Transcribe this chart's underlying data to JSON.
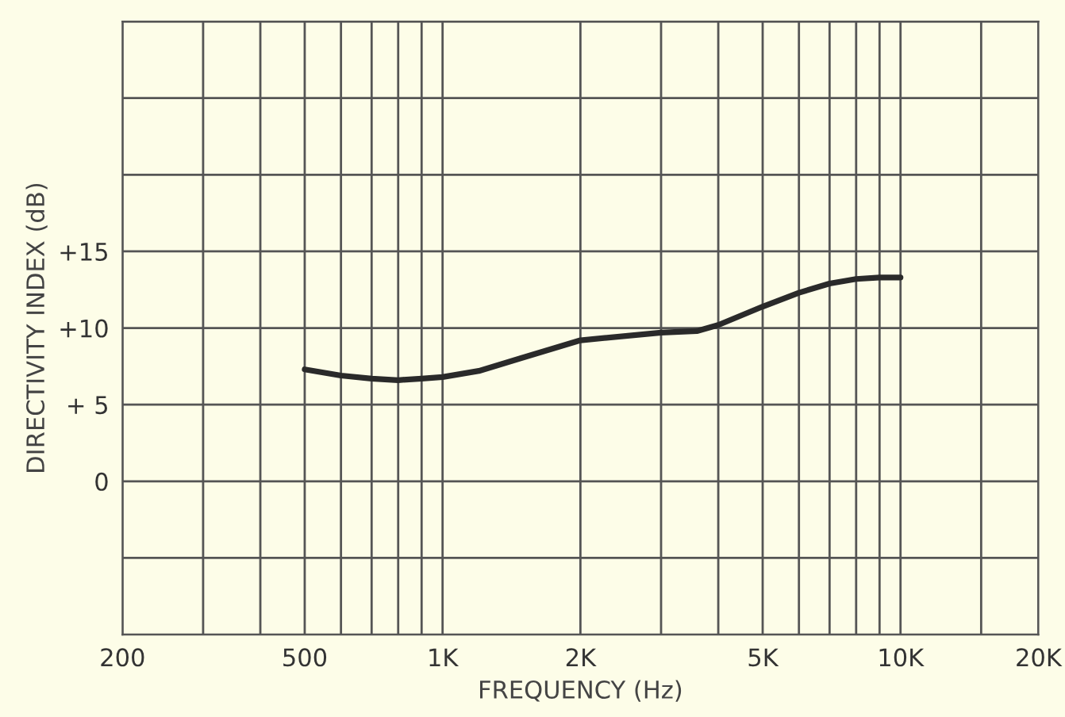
{
  "chart_data": {
    "type": "line",
    "xlabel": "FREQUENCY (Hz)",
    "ylabel": "DIRECTIVITY INDEX (dB)",
    "log": "x",
    "grid": true,
    "marker": "none",
    "line_style": "solid",
    "x": [
      500,
      600,
      700,
      800,
      900,
      1000,
      1200,
      1470,
      2000,
      3000,
      3590,
      4000,
      5000,
      6000,
      7000,
      8000,
      9000,
      10000
    ],
    "series": [
      {
        "color": "#2a2a2a",
        "values": [
          7.3,
          6.9,
          6.7,
          6.6,
          6.7,
          6.8,
          7.2,
          8.0,
          9.2,
          9.7,
          9.8,
          10.2,
          11.4,
          12.3,
          12.9,
          13.2,
          13.3,
          13.3
        ]
      }
    ],
    "xlim": [
      200,
      20000
    ],
    "xticks": [
      {
        "value": 200,
        "label": "200"
      },
      {
        "value": 300,
        "label": null
      },
      {
        "value": 400,
        "label": null
      },
      {
        "value": 500,
        "label": "500"
      },
      {
        "value": 600,
        "label": null
      },
      {
        "value": 700,
        "label": null
      },
      {
        "value": 800,
        "label": null
      },
      {
        "value": 900,
        "label": null
      },
      {
        "value": 1000,
        "label": "1K"
      },
      {
        "value": 2000,
        "label": "2K"
      },
      {
        "value": 3000,
        "label": null
      },
      {
        "value": 4000,
        "label": null
      },
      {
        "value": 5000,
        "label": "5K"
      },
      {
        "value": 6000,
        "label": null
      },
      {
        "value": 7000,
        "label": null
      },
      {
        "value": 8000,
        "label": null
      },
      {
        "value": 9000,
        "label": null
      },
      {
        "value": 10000,
        "label": "10K"
      },
      {
        "value": 15000,
        "label": null
      },
      {
        "value": 20000,
        "label": "20K"
      }
    ],
    "ylim": [
      -10,
      30
    ],
    "yticks": [
      {
        "value": -10,
        "label": null
      },
      {
        "value": -5,
        "label": null
      },
      0,
      {
        "value": 5,
        "label": "+ 5"
      },
      {
        "value": 10,
        "label": "+10"
      },
      {
        "value": 15,
        "label": "+15"
      },
      {
        "value": 20,
        "label": null
      },
      {
        "value": 25,
        "label": null
      },
      {
        "value": 30,
        "label": null
      }
    ]
  }
}
